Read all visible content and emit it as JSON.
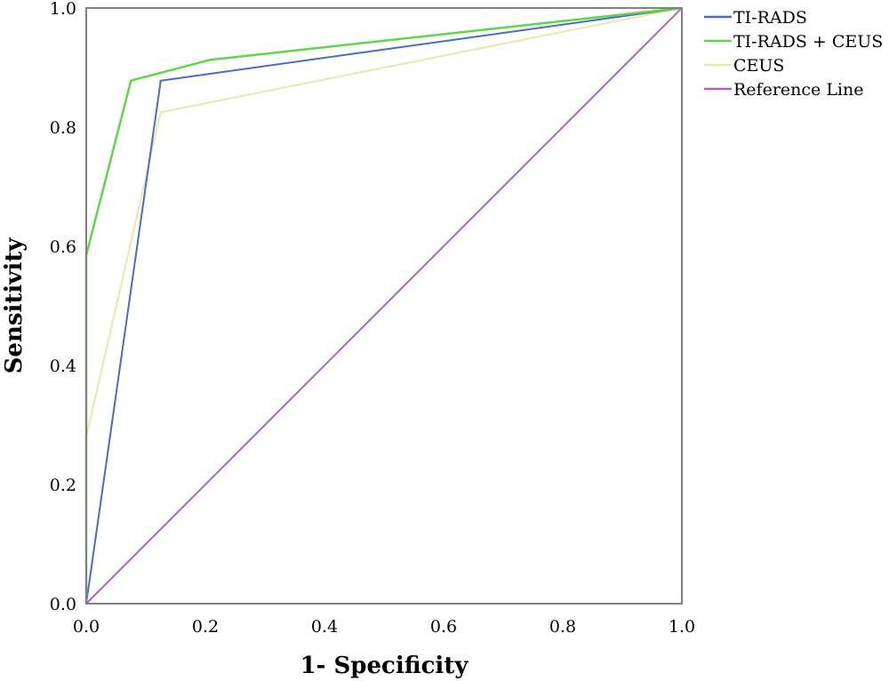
{
  "chart_data": {
    "type": "line",
    "xlabel": "1- Specificity",
    "ylabel": "Sensitivity",
    "xlim": [
      0,
      1
    ],
    "ylim": [
      0,
      1
    ],
    "x_ticks": [
      "0.0",
      "0.2",
      "0.4",
      "0.6",
      "0.8",
      "1.0"
    ],
    "y_ticks": [
      "0.0",
      "0.2",
      "0.4",
      "0.6",
      "0.8",
      "1.0"
    ],
    "grid": false,
    "legend_position": "top-right outside",
    "series": [
      {
        "name": "TI-RADS",
        "color": "#4a6cc8",
        "x": [
          0,
          0.125,
          1.0
        ],
        "y": [
          0,
          0.878,
          1.0
        ]
      },
      {
        "name": "TI-RADS + CEUS",
        "color": "#5fd64a",
        "x": [
          0,
          0,
          0.075,
          0.208,
          1.0
        ],
        "y": [
          0,
          0.585,
          0.878,
          0.913,
          1.0
        ]
      },
      {
        "name": "CEUS",
        "color": "#e8e9a8",
        "x": [
          0,
          0,
          0.125,
          1.0
        ],
        "y": [
          0,
          0.28,
          0.825,
          1.0
        ]
      },
      {
        "name": "Reference Line",
        "color": "#b062c0",
        "x": [
          0,
          1.0
        ],
        "y": [
          0,
          1.0
        ]
      }
    ]
  }
}
